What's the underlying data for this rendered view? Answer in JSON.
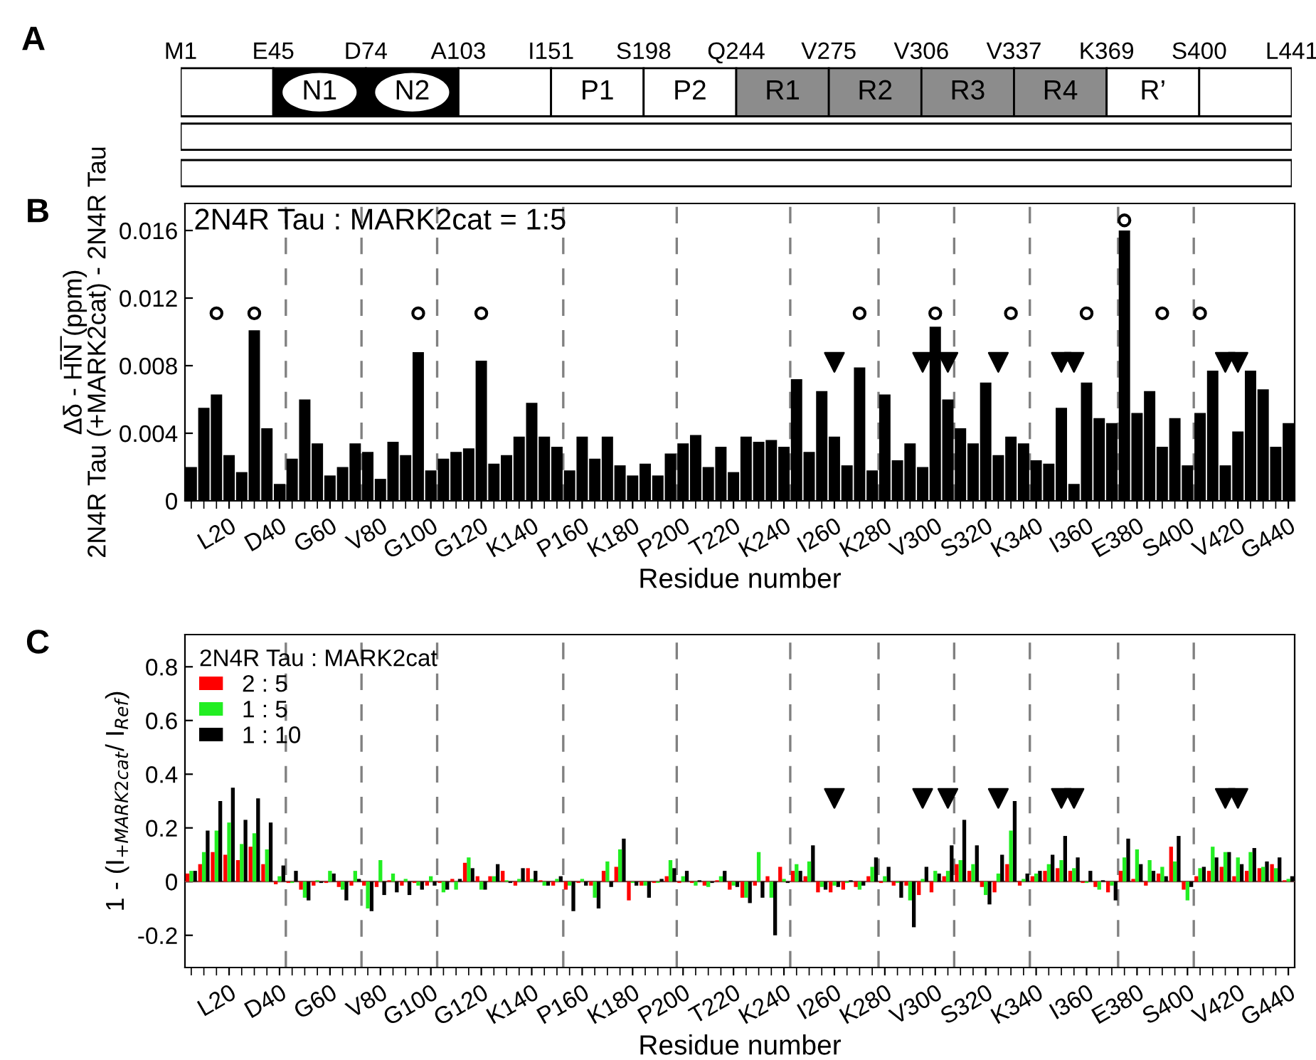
{
  "chart_data": [
    {
      "type": "other",
      "annotations": [
        "A",
        "M1",
        "E45",
        "D74",
        "A103",
        "I151",
        "S198",
        "Q244",
        "V275",
        "V306",
        "V337",
        "K369",
        "S400",
        "L441"
      ],
      "categories": [
        null,
        "N1",
        "N2",
        null,
        "P1",
        "P2",
        "R1",
        "R2",
        "R3",
        "R4",
        "R’",
        null
      ],
      "colors": [
        "#ffffff",
        "#000000",
        "#000000",
        "#ffffff",
        "#ffffff",
        "#ffffff",
        "#8c8c8c",
        "#8c8c8c",
        "#8c8c8c",
        "#8c8c8c",
        "#ffffff",
        "#ffffff"
      ]
    },
    {
      "type": "bar",
      "annotations": [
        "B",
        "2N4R Tau : MARK2cat = 1:5"
      ],
      "xlabel": "Residue number",
      "ylabel": "Δδ - H̅N̅ (ppm)\n2N4R Tau (+MARK2cat) - 2N4R Tau",
      "ylim": [
        0,
        0.0176
      ],
      "yticks": [
        0,
        0.004,
        0.008,
        0.012,
        0.016
      ],
      "categories": [
        null,
        null,
        null,
        "L20",
        null,
        null,
        null,
        "D40",
        null,
        null,
        null,
        "G60",
        null,
        null,
        null,
        "V80",
        null,
        null,
        null,
        "G100",
        null,
        null,
        null,
        "G120",
        null,
        null,
        null,
        "K140",
        null,
        null,
        null,
        "P160",
        null,
        null,
        null,
        "K180",
        null,
        null,
        null,
        "P200",
        null,
        null,
        null,
        "T220",
        null,
        null,
        null,
        "K240",
        null,
        null,
        null,
        "I260",
        null,
        null,
        null,
        "K280",
        null,
        null,
        null,
        "V300",
        null,
        null,
        null,
        "S320",
        null,
        null,
        null,
        "K340",
        null,
        null,
        null,
        "I360",
        null,
        null,
        null,
        "E380",
        null,
        null,
        null,
        "S400",
        null,
        null,
        null,
        "V420",
        null,
        null,
        null,
        "G440"
      ],
      "grid": false,
      "legend": false,
      "series": [
        {
          "type": "bar",
          "color": "#000000",
          "values": [
            0.002,
            0.0055,
            0.0063,
            0.0027,
            0.0017,
            0.0101,
            0.0043,
            0.001,
            0.0025,
            0.006,
            0.0034,
            0.0015,
            0.002,
            0.0034,
            0.0029,
            0.0013,
            0.0035,
            0.0027,
            0.0088,
            0.0018,
            0.0025,
            0.0029,
            0.0031,
            0.0083,
            0.0022,
            0.0027,
            0.0038,
            0.0058,
            0.0038,
            0.0032,
            0.0018,
            0.0038,
            0.0025,
            0.0038,
            0.0021,
            0.0015,
            0.0022,
            0.0015,
            0.0028,
            0.0034,
            0.0039,
            0.002,
            0.0032,
            0.0017,
            0.0038,
            0.0035,
            0.0036,
            0.0032,
            0.0072,
            0.0029,
            0.0065,
            0.0038,
            0.0021,
            0.0079,
            0.0018,
            0.0063,
            0.0024,
            0.0034,
            0.002,
            0.0103,
            0.006,
            0.0043,
            0.0034,
            0.007,
            0.0027,
            0.0038,
            0.0034,
            0.0024,
            0.0022,
            0.0055,
            0.001,
            0.007,
            0.0049,
            0.0046,
            0.016,
            0.0052,
            0.0065,
            0.0032,
            0.0049,
            0.0021,
            0.0052,
            0.0077,
            0.0021,
            0.0041,
            0.0077,
            0.0066,
            0.0032,
            0.0046
          ]
        },
        {
          "type": "scatter",
          "marker": "circle",
          "color": "#000000",
          "values": [
            null,
            null,
            0.0111,
            null,
            null,
            0.0111,
            null,
            null,
            null,
            null,
            null,
            null,
            null,
            null,
            null,
            null,
            null,
            null,
            0.0111,
            null,
            null,
            null,
            null,
            0.0111,
            null,
            null,
            null,
            null,
            null,
            null,
            null,
            null,
            null,
            null,
            null,
            null,
            null,
            null,
            null,
            null,
            null,
            null,
            null,
            null,
            null,
            null,
            null,
            null,
            null,
            null,
            null,
            null,
            null,
            0.0111,
            null,
            null,
            null,
            null,
            null,
            0.0111,
            null,
            null,
            null,
            null,
            null,
            0.0111,
            null,
            null,
            null,
            null,
            null,
            0.0111,
            null,
            null,
            0.0166,
            null,
            null,
            0.0111,
            null,
            null,
            0.0111,
            null,
            null,
            null,
            null,
            null,
            null,
            null
          ]
        },
        {
          "type": "scatter",
          "marker": "triangle",
          "color": "#000000",
          "values": [
            null,
            null,
            null,
            null,
            null,
            null,
            null,
            null,
            null,
            null,
            null,
            null,
            null,
            null,
            null,
            null,
            null,
            null,
            null,
            null,
            null,
            null,
            null,
            null,
            null,
            null,
            null,
            null,
            null,
            null,
            null,
            null,
            null,
            null,
            null,
            null,
            null,
            null,
            null,
            null,
            null,
            null,
            null,
            null,
            null,
            null,
            null,
            null,
            null,
            null,
            null,
            0.0082,
            null,
            null,
            null,
            null,
            null,
            null,
            0.0082,
            null,
            0.0082,
            null,
            null,
            null,
            0.0082,
            null,
            null,
            null,
            null,
            0.0082,
            0.0082,
            null,
            null,
            null,
            null,
            null,
            null,
            null,
            null,
            null,
            null,
            null,
            0.0082,
            0.0082,
            null,
            null,
            null,
            null
          ]
        }
      ]
    },
    {
      "type": "bar",
      "annotations": [
        "C"
      ],
      "xlabel": "Residue number",
      "ylabel": "1 - (I$_{+MARK2cat}$/ I$_{Ref}$)",
      "legend_title": "2N4R Tau : MARK2cat",
      "ylim": [
        -0.32,
        0.92
      ],
      "yticks": [
        -0.2,
        0,
        0.2,
        0.4,
        0.6,
        0.8
      ],
      "categories": [
        null,
        null,
        null,
        "L20",
        null,
        null,
        null,
        "D40",
        null,
        null,
        null,
        "G60",
        null,
        null,
        null,
        "V80",
        null,
        null,
        null,
        "G100",
        null,
        null,
        null,
        "G120",
        null,
        null,
        null,
        "K140",
        null,
        null,
        null,
        "P160",
        null,
        null,
        null,
        "K180",
        null,
        null,
        null,
        "P200",
        null,
        null,
        null,
        "T220",
        null,
        null,
        null,
        "K240",
        null,
        null,
        null,
        "I260",
        null,
        null,
        null,
        "K280",
        null,
        null,
        null,
        "V300",
        null,
        null,
        null,
        "S320",
        null,
        null,
        null,
        "K340",
        null,
        null,
        null,
        "I360",
        null,
        null,
        null,
        "E380",
        null,
        null,
        null,
        "S400",
        null,
        null,
        null,
        "V420",
        null,
        null,
        null,
        "G440"
      ],
      "grid": false,
      "legend": "top left",
      "ref_lines": [
        {
          "axis": "y",
          "value": 0,
          "color": "#7a4a4a",
          "line_style": "solid"
        }
      ],
      "series": [
        {
          "name": "2 : 5",
          "color": "#ff0000",
          "values": [
            0.03,
            0.065,
            0.11,
            0.1,
            0.08,
            0.13,
            0.065,
            -0.01,
            -0.005,
            -0.03,
            -0.015,
            -0.005,
            -0.02,
            -0.015,
            -0.015,
            -0.02,
            0.005,
            -0.015,
            -0.005,
            -0.015,
            -0.005,
            0.01,
            0.07,
            0.02,
            0.02,
            0.04,
            -0.015,
            0.05,
            0.005,
            -0.015,
            -0.03,
            -0.005,
            -0.015,
            0.04,
            0.055,
            -0.07,
            -0.015,
            -0.005,
            0.02,
            -0.005,
            -0.005,
            -0.015,
            0.005,
            -0.03,
            -0.06,
            -0.015,
            0.02,
            0.055,
            0.04,
            0.02,
            -0.04,
            -0.04,
            -0.03,
            -0.02,
            0.02,
            -0.005,
            -0.015,
            -0.015,
            -0.05,
            -0.04,
            0.02,
            0.065,
            0.04,
            -0.02,
            -0.04,
            0.065,
            -0.015,
            0.02,
            0.04,
            0.05,
            0.04,
            -0.005,
            -0.02,
            -0.04,
            0.04,
            0.01,
            -0.015,
            0.03,
            0.13,
            -0.03,
            0.02,
            0.04,
            0.055,
            0.02,
            0.04,
            0.05,
            0.065,
            0.005
          ]
        },
        {
          "name": "1 : 5",
          "color": "#22ee22",
          "values": [
            0.04,
            0.11,
            0.19,
            0.22,
            0.14,
            0.18,
            0.12,
            0.02,
            -0.005,
            -0.06,
            0.005,
            0.04,
            -0.03,
            0.04,
            -0.1,
            0.08,
            0.03,
            0.01,
            -0.015,
            0.02,
            -0.04,
            -0.03,
            0.09,
            -0.03,
            0.02,
            0.005,
            0.01,
            0.01,
            -0.015,
            0.01,
            -0.015,
            0.01,
            -0.06,
            0.075,
            0.12,
            -0.005,
            -0.015,
            -0.005,
            0.08,
            0.02,
            -0.015,
            -0.02,
            0.02,
            -0.015,
            -0.06,
            0.11,
            -0.06,
            0.01,
            0.065,
            0.075,
            -0.02,
            -0.015,
            -0.005,
            -0.03,
            0.055,
            0.02,
            -0.005,
            -0.07,
            0.01,
            0.04,
            0.04,
            0.08,
            0.065,
            -0.05,
            0.03,
            0.19,
            0.01,
            0.03,
            0.065,
            0.08,
            0.05,
            -0.005,
            -0.03,
            -0.015,
            0.09,
            0.12,
            0.08,
            0.055,
            0.075,
            -0.07,
            0.05,
            0.13,
            0.11,
            0.09,
            0.11,
            0.055,
            0.05,
            0.01
          ]
        },
        {
          "name": "1 : 10",
          "color": "#000000",
          "values": [
            0.04,
            0.19,
            0.3,
            0.35,
            0.23,
            0.31,
            0.22,
            0.06,
            0.04,
            -0.07,
            -0.005,
            0.03,
            -0.07,
            0.01,
            -0.11,
            -0.05,
            -0.04,
            -0.05,
            -0.03,
            -0.015,
            -0.03,
            0.01,
            0.05,
            -0.03,
            0.065,
            -0.005,
            0.05,
            0.04,
            -0.015,
            0.02,
            -0.11,
            -0.015,
            -0.1,
            -0.02,
            0.16,
            -0.015,
            -0.06,
            0.01,
            0.05,
            0.04,
            0.005,
            -0.005,
            0.04,
            -0.02,
            -0.08,
            -0.06,
            -0.2,
            -0.005,
            0.04,
            0.135,
            -0.03,
            -0.02,
            0.005,
            -0.015,
            0.09,
            0.055,
            -0.06,
            -0.17,
            0.055,
            0.03,
            0.135,
            0.23,
            0.135,
            -0.085,
            0.1,
            0.3,
            0.03,
            0.04,
            0.1,
            0.17,
            0.09,
            0.04,
            0.005,
            -0.07,
            0.16,
            0.065,
            0.04,
            0.02,
            0.17,
            -0.02,
            0.055,
            0.09,
            0.11,
            0.065,
            0.125,
            0.075,
            0.09,
            0.02
          ]
        },
        {
          "type": "scatter",
          "marker": "triangle",
          "color": "#000000",
          "values": [
            null,
            null,
            null,
            null,
            null,
            null,
            null,
            null,
            null,
            null,
            null,
            null,
            null,
            null,
            null,
            null,
            null,
            null,
            null,
            null,
            null,
            null,
            null,
            null,
            null,
            null,
            null,
            null,
            null,
            null,
            null,
            null,
            null,
            null,
            null,
            null,
            null,
            null,
            null,
            null,
            null,
            null,
            null,
            null,
            null,
            null,
            null,
            null,
            null,
            null,
            null,
            0.31,
            null,
            null,
            null,
            null,
            null,
            null,
            0.31,
            null,
            0.31,
            null,
            null,
            null,
            0.31,
            null,
            null,
            null,
            null,
            0.31,
            0.31,
            null,
            null,
            null,
            null,
            null,
            null,
            null,
            null,
            null,
            null,
            null,
            0.31,
            0.31,
            null,
            null,
            null,
            null
          ]
        }
      ]
    }
  ]
}
